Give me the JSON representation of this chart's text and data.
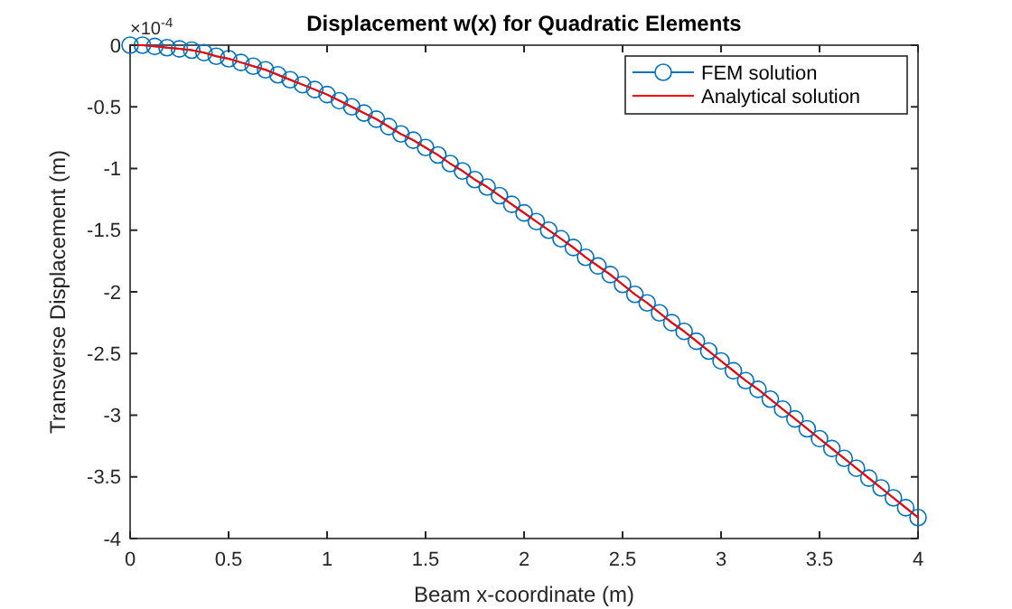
{
  "chart_data": {
    "type": "line",
    "title": "Displacement w(x) for Quadratic Elements",
    "xlabel": "Beam x-coordinate (m)",
    "ylabel": "Transverse Displacement (m)",
    "annotations": [
      "×10$^{-4}$"
    ],
    "x": [
      0,
      0.0625,
      0.125,
      0.1875,
      0.25,
      0.3125,
      0.375,
      0.4375,
      0.5,
      0.5625,
      0.625,
      0.6875,
      0.75,
      0.8125,
      0.875,
      0.9375,
      1,
      1.0625,
      1.125,
      1.1875,
      1.25,
      1.3125,
      1.375,
      1.4375,
      1.5,
      1.5625,
      1.625,
      1.6875,
      1.75,
      1.8125,
      1.875,
      1.9375,
      2,
      2.0625,
      2.125,
      2.1875,
      2.25,
      2.3125,
      2.375,
      2.4375,
      2.5,
      2.5625,
      2.625,
      2.6875,
      2.75,
      2.8125,
      2.875,
      2.9375,
      3,
      3.0625,
      3.125,
      3.1875,
      3.25,
      3.3125,
      3.375,
      3.4375,
      3.5,
      3.5625,
      3.625,
      3.6875,
      3.75,
      3.8125,
      3.875,
      3.9375,
      4
    ],
    "series": [
      {
        "name": "FEM solution",
        "color": "#0072bd",
        "marker": "circle",
        "values": [
          0,
          0,
          -0.01,
          -0.02,
          -0.03,
          -0.04,
          -0.06,
          -0.09,
          -0.11,
          -0.14,
          -0.17,
          -0.2,
          -0.24,
          -0.28,
          -0.32,
          -0.36,
          -0.4,
          -0.45,
          -0.5,
          -0.55,
          -0.6,
          -0.66,
          -0.72,
          -0.77,
          -0.83,
          -0.89,
          -0.96,
          -1.02,
          -1.09,
          -1.15,
          -1.22,
          -1.29,
          -1.36,
          -1.43,
          -1.5,
          -1.57,
          -1.64,
          -1.72,
          -1.79,
          -1.86,
          -1.94,
          -2.02,
          -2.09,
          -2.17,
          -2.25,
          -2.32,
          -2.4,
          -2.48,
          -2.56,
          -2.64,
          -2.72,
          -2.79,
          -2.87,
          -2.95,
          -3.03,
          -3.11,
          -3.19,
          -3.27,
          -3.35,
          -3.43,
          -3.51,
          -3.59,
          -3.67,
          -3.75,
          -3.83
        ]
      },
      {
        "name": "Analytical solution",
        "color": "#ff0000",
        "marker": "none",
        "values": [
          0,
          0,
          -0.01,
          -0.02,
          -0.03,
          -0.04,
          -0.06,
          -0.09,
          -0.11,
          -0.14,
          -0.17,
          -0.2,
          -0.24,
          -0.28,
          -0.32,
          -0.36,
          -0.4,
          -0.45,
          -0.5,
          -0.55,
          -0.6,
          -0.66,
          -0.72,
          -0.77,
          -0.83,
          -0.89,
          -0.96,
          -1.02,
          -1.09,
          -1.15,
          -1.22,
          -1.29,
          -1.36,
          -1.43,
          -1.5,
          -1.57,
          -1.64,
          -1.72,
          -1.79,
          -1.86,
          -1.94,
          -2.02,
          -2.09,
          -2.17,
          -2.25,
          -2.32,
          -2.4,
          -2.48,
          -2.56,
          -2.64,
          -2.72,
          -2.79,
          -2.87,
          -2.95,
          -3.03,
          -3.11,
          -3.19,
          -3.27,
          -3.35,
          -3.43,
          -3.51,
          -3.59,
          -3.67,
          -3.75,
          -3.83
        ]
      }
    ],
    "xlim": [
      0,
      4
    ],
    "xticks": [
      0,
      0.5,
      1,
      1.5,
      2,
      2.5,
      3,
      3.5,
      4
    ],
    "ylim": [
      -4,
      0
    ],
    "yticks": [
      -4,
      -3.5,
      -3,
      -2.5,
      -2,
      -1.5,
      -1,
      -0.5,
      0
    ],
    "grid": false,
    "legend": "top right",
    "line_style": "solid"
  }
}
